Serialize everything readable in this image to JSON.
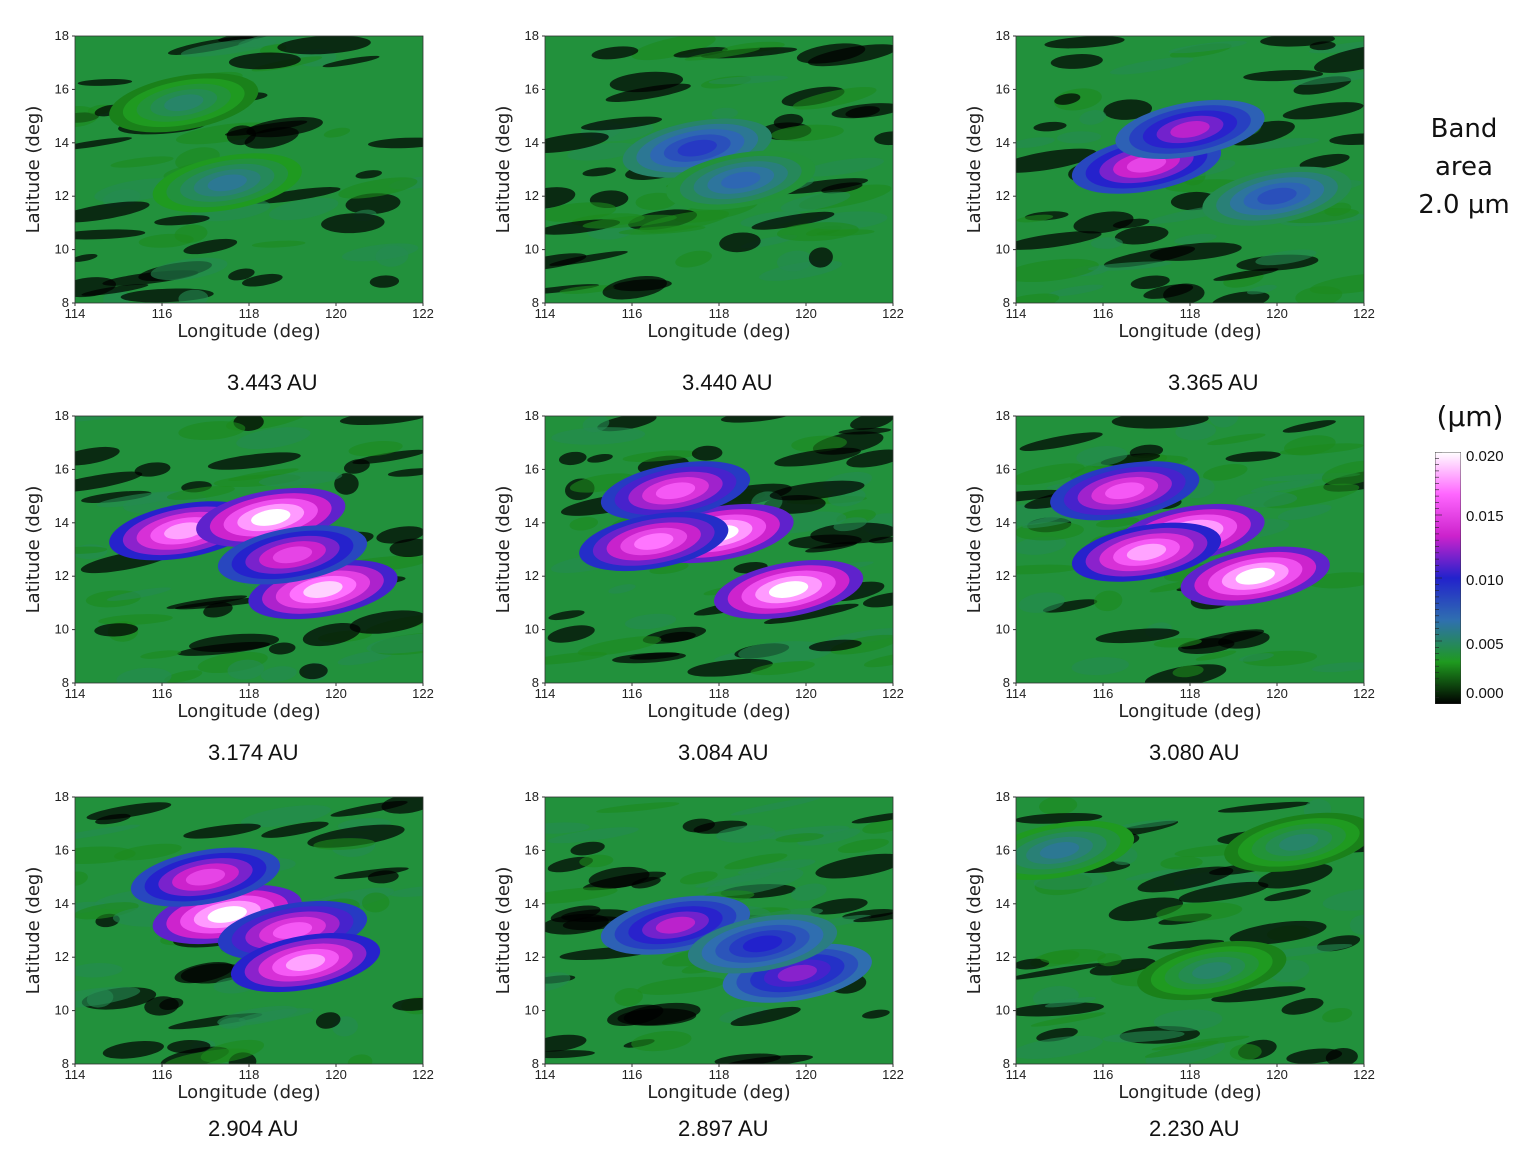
{
  "side_title": {
    "line1": "Band",
    "line2": "area",
    "line3": "2.0 µm"
  },
  "colorbar": {
    "unit": "(µm)",
    "ticks": [
      "0.020",
      "0.015",
      "0.010",
      "0.005",
      "0.000"
    ],
    "range": [
      0.0,
      0.02
    ],
    "stops": [
      "#000000",
      "#1f9a1f",
      "#2f6fb0",
      "#2222cc",
      "#cc22cc",
      "#ff66ff",
      "#ffffff"
    ]
  },
  "chart_data": [
    {
      "type": "heatmap",
      "caption": "3.443 AU",
      "xlabel": "Longitude (deg)",
      "ylabel": "Latitude (deg)",
      "xlim": [
        114,
        122
      ],
      "ylim": [
        8,
        18
      ],
      "xticks": [
        "114",
        "116",
        "118",
        "120",
        "122"
      ],
      "yticks": [
        "8",
        "10",
        "12",
        "14",
        "16",
        "18"
      ],
      "peak_band_area": 0.006,
      "hotspots": [
        {
          "lon": 117.5,
          "lat": 12.5,
          "value": 0.006
        },
        {
          "lon": 116.5,
          "lat": 15.5,
          "value": 0.005
        }
      ]
    },
    {
      "type": "heatmap",
      "caption": "3.440 AU",
      "xlabel": "Longitude (deg)",
      "ylabel": "Latitude (deg)",
      "xlim": [
        114,
        122
      ],
      "ylim": [
        8,
        18
      ],
      "xticks": [
        "114",
        "116",
        "118",
        "120",
        "122"
      ],
      "yticks": [
        "8",
        "10",
        "12",
        "14",
        "16",
        "18"
      ],
      "peak_band_area": 0.009,
      "hotspots": [
        {
          "lon": 117.5,
          "lat": 13.8,
          "value": 0.009
        },
        {
          "lon": 118.5,
          "lat": 12.6,
          "value": 0.007
        }
      ]
    },
    {
      "type": "heatmap",
      "caption": "3.365 AU",
      "xlabel": "Longitude (deg)",
      "ylabel": "Latitude (deg)",
      "xlim": [
        114,
        122
      ],
      "ylim": [
        8,
        18
      ],
      "xticks": [
        "114",
        "116",
        "118",
        "120",
        "122"
      ],
      "yticks": [
        "8",
        "10",
        "12",
        "14",
        "16",
        "18"
      ],
      "peak_band_area": 0.015,
      "hotspots": [
        {
          "lon": 117.0,
          "lat": 13.2,
          "value": 0.015
        },
        {
          "lon": 118.0,
          "lat": 14.5,
          "value": 0.013
        },
        {
          "lon": 120.0,
          "lat": 12.0,
          "value": 0.008
        }
      ]
    },
    {
      "type": "heatmap",
      "caption": "3.174 AU",
      "xlabel": "Longitude (deg)",
      "ylabel": "Latitude (deg)",
      "xlim": [
        114,
        122
      ],
      "ylim": [
        8,
        18
      ],
      "xticks": [
        "114",
        "116",
        "118",
        "120",
        "122"
      ],
      "yticks": [
        "8",
        "10",
        "12",
        "14",
        "16",
        "18"
      ],
      "peak_band_area": 0.02,
      "hotspots": [
        {
          "lon": 116.5,
          "lat": 13.7,
          "value": 0.018
        },
        {
          "lon": 118.5,
          "lat": 14.2,
          "value": 0.02
        },
        {
          "lon": 119.7,
          "lat": 11.5,
          "value": 0.019
        },
        {
          "lon": 119.0,
          "lat": 12.8,
          "value": 0.015
        }
      ]
    },
    {
      "type": "heatmap",
      "caption": "3.084 AU",
      "xlabel": "Longitude (deg)",
      "ylabel": "Latitude (deg)",
      "xlim": [
        114,
        122
      ],
      "ylim": [
        8,
        18
      ],
      "xticks": [
        "114",
        "116",
        "118",
        "120",
        "122"
      ],
      "yticks": [
        "8",
        "10",
        "12",
        "14",
        "16",
        "18"
      ],
      "peak_band_area": 0.02,
      "hotspots": [
        {
          "lon": 118.0,
          "lat": 13.6,
          "value": 0.02
        },
        {
          "lon": 119.6,
          "lat": 11.5,
          "value": 0.02
        },
        {
          "lon": 117.0,
          "lat": 15.2,
          "value": 0.016
        },
        {
          "lon": 116.5,
          "lat": 13.3,
          "value": 0.017
        }
      ]
    },
    {
      "type": "heatmap",
      "caption": "3.080 AU",
      "xlabel": "Longitude (deg)",
      "ylabel": "Latitude (deg)",
      "xlim": [
        114,
        122
      ],
      "ylim": [
        8,
        18
      ],
      "xticks": [
        "114",
        "116",
        "118",
        "120",
        "122"
      ],
      "yticks": [
        "8",
        "10",
        "12",
        "14",
        "16",
        "18"
      ],
      "peak_band_area": 0.02,
      "hotspots": [
        {
          "lon": 118.0,
          "lat": 13.6,
          "value": 0.02
        },
        {
          "lon": 119.5,
          "lat": 12.0,
          "value": 0.02
        },
        {
          "lon": 116.5,
          "lat": 15.2,
          "value": 0.016
        },
        {
          "lon": 117.0,
          "lat": 12.9,
          "value": 0.018
        }
      ]
    },
    {
      "type": "heatmap",
      "caption": "2.904 AU",
      "xlabel": "Longitude (deg)",
      "ylabel": "Latitude (deg)",
      "xlim": [
        114,
        122
      ],
      "ylim": [
        8,
        18
      ],
      "xticks": [
        "114",
        "116",
        "118",
        "120",
        "122"
      ],
      "yticks": [
        "8",
        "10",
        "12",
        "14",
        "16",
        "18"
      ],
      "peak_band_area": 0.02,
      "hotspots": [
        {
          "lon": 117.5,
          "lat": 13.6,
          "value": 0.02
        },
        {
          "lon": 119.0,
          "lat": 13.0,
          "value": 0.016
        },
        {
          "lon": 119.3,
          "lat": 11.8,
          "value": 0.018
        },
        {
          "lon": 117.0,
          "lat": 15.0,
          "value": 0.015
        }
      ]
    },
    {
      "type": "heatmap",
      "caption": "2.897 AU",
      "xlabel": "Longitude (deg)",
      "ylabel": "Latitude (deg)",
      "xlim": [
        114,
        122
      ],
      "ylim": [
        8,
        18
      ],
      "xticks": [
        "114",
        "116",
        "118",
        "120",
        "122"
      ],
      "yticks": [
        "8",
        "10",
        "12",
        "14",
        "16",
        "18"
      ],
      "peak_band_area": 0.013,
      "hotspots": [
        {
          "lon": 117.0,
          "lat": 13.2,
          "value": 0.013
        },
        {
          "lon": 119.8,
          "lat": 11.4,
          "value": 0.012
        },
        {
          "lon": 119.0,
          "lat": 12.5,
          "value": 0.01
        }
      ]
    },
    {
      "type": "heatmap",
      "caption": "2.230 AU",
      "xlabel": "Longitude (deg)",
      "ylabel": "Latitude (deg)",
      "xlim": [
        114,
        122
      ],
      "ylim": [
        8,
        18
      ],
      "xticks": [
        "114",
        "116",
        "118",
        "120",
        "122"
      ],
      "yticks": [
        "8",
        "10",
        "12",
        "14",
        "16",
        "18"
      ],
      "peak_band_area": 0.006,
      "hotspots": [
        {
          "lon": 115.0,
          "lat": 16.0,
          "value": 0.006
        },
        {
          "lon": 118.5,
          "lat": 11.5,
          "value": 0.005
        },
        {
          "lon": 120.5,
          "lat": 16.3,
          "value": 0.005
        }
      ]
    }
  ]
}
